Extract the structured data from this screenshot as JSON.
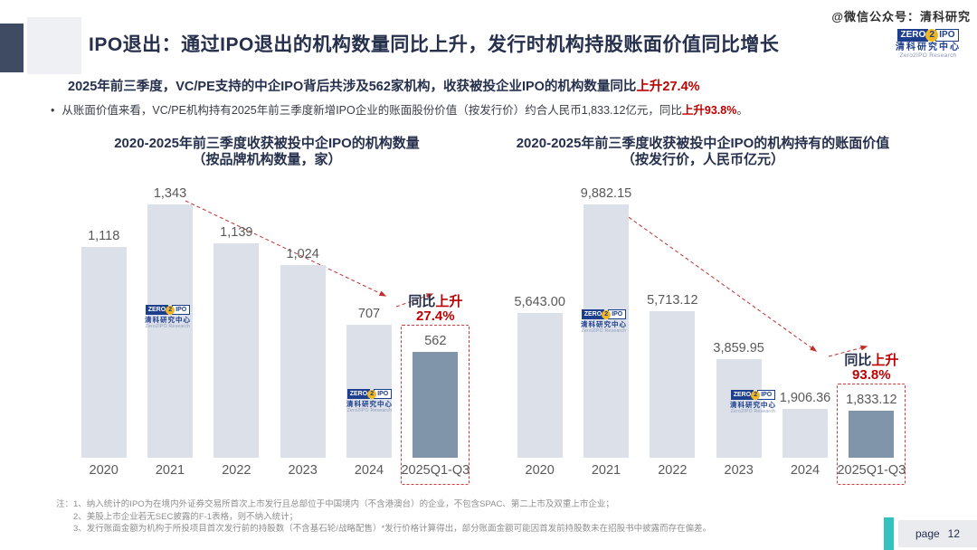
{
  "watermark_text": "@微信公众号：清科研究",
  "brand_logo": {
    "zero": "ZERO",
    "num": "2",
    "ipo": "IPO",
    "name_cn": "清科研究中心",
    "name_en": "Zero2IPO Research"
  },
  "header": {
    "title": "IPO退出：通过IPO退出的机构数量同比上升，发行时机构持股账面价值同比增长",
    "summary_text": "2025年前三季度，VC/PE支持的中企IPO背后共涉及562家机构，收获被投企业IPO的机构数量同比",
    "summary_highlight": "上升27.4%",
    "bullet_marker": "•",
    "bullet_text": "从账面价值来看，VC/PE机构持有2025年前三季度新增IPO企业的账面股份价值（按发行价）约合人民币1,833.12亿元，同比",
    "bullet_highlight": "上升93.8%",
    "bullet_suffix": "。"
  },
  "chart_data": [
    {
      "type": "bar",
      "title": "2020-2025年前三季度收获被投中企IPO的机构数量",
      "subtitle": "（按品牌机构数量，家）",
      "categories": [
        "2020",
        "2021",
        "2022",
        "2023",
        "2024",
        "2025Q1-Q3"
      ],
      "values": [
        1118,
        1343,
        1139,
        1024,
        707,
        562
      ],
      "labels": [
        "1,118",
        "1,343",
        "1,139",
        "1,024",
        "707",
        "562"
      ],
      "highlight_index": 5,
      "ylim": [
        0,
        1343
      ],
      "grid": false,
      "annotation": {
        "prefix": "同比",
        "emph": "上升",
        "value": "27.4%"
      }
    },
    {
      "type": "bar",
      "title": "2020-2025年前三季度收获被投中企IPO的机构持有的账面价值",
      "subtitle": "（按发行价，人民币亿元）",
      "categories": [
        "2020",
        "2021",
        "2022",
        "2023",
        "2024",
        "2025Q1-Q3"
      ],
      "values": [
        5643.0,
        9882.15,
        5713.12,
        3859.95,
        1906.36,
        1833.12
      ],
      "labels": [
        "5,643.00",
        "9,882.15",
        "5,713.12",
        "3,859.95",
        "1,906.36",
        "1,833.12"
      ],
      "highlight_index": 5,
      "ylim": [
        0,
        9882.15
      ],
      "grid": false,
      "annotation": {
        "prefix": "同比",
        "emph": "上升",
        "value": "93.8%"
      }
    }
  ],
  "footnotes": {
    "prefix": "注：",
    "items": [
      "1、纳入统计的IPO为在境内外证券交易所首次上市发行且总部位于中国境内（不含港澳台）的企业，不包含SPAC、第二上市及双重上市企业；",
      "2、美股上市企业若无SEC披露的F-1表格，则不纳入统计；",
      "3、发行账面金额为机构于所投项目首次发行前的持股数（不含基石轮/战略配售）*发行价格计算得出，部分账面金额可能因首发前持股数未在招股书中披露而存在偏差。"
    ]
  },
  "footer": {
    "page_label": "page",
    "page_number": "12"
  },
  "colors": {
    "navy": "#26304d",
    "red": "#c00000",
    "arrow_red": "#c2302e",
    "bar_light": "#dce0e9",
    "bar_dark": "#8094aa",
    "teal": "#35c1bd"
  }
}
